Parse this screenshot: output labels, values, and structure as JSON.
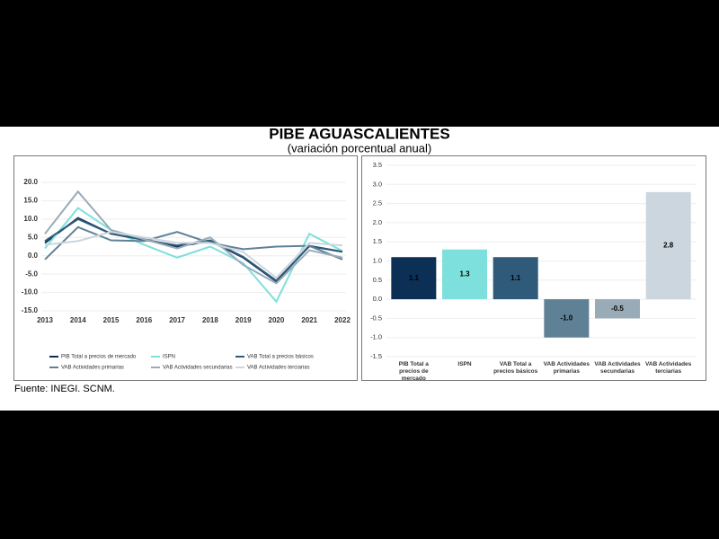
{
  "title": "PIBE AGUASCALIENTES",
  "subtitle": "(variación porcentual anual)",
  "source": "Fuente: INEGI. SCNM.",
  "chart_data": [
    {
      "type": "line",
      "categories": [
        "2013",
        "2014",
        "2015",
        "2016",
        "2017",
        "2018",
        "2019",
        "2020",
        "2021",
        "2022"
      ],
      "ylim": [
        -15,
        20
      ],
      "yticks": [
        {
          "value": 20,
          "label": "20.0"
        },
        {
          "value": 15,
          "label": "15.0"
        },
        {
          "value": 10,
          "label": "10.0"
        },
        {
          "value": 5,
          "label": "5.0"
        },
        {
          "value": 0,
          "label": "0.0"
        },
        {
          "value": -5,
          "label": "-5.0"
        },
        {
          "value": -10,
          "label": "-10.0"
        },
        {
          "value": -15,
          "label": "-15.0"
        }
      ],
      "grid": true,
      "series": [
        {
          "name": "PIB Total a precios de mercado",
          "color": "#0b2f55",
          "values": [
            3.5,
            10.3,
            6,
            4.5,
            2.5,
            4,
            -0.5,
            -7,
            2.7,
            1.1
          ]
        },
        {
          "name": "ISPN",
          "color": "#7ee0dc",
          "values": [
            2,
            13,
            7,
            3,
            -0.5,
            2.5,
            -2,
            -12.5,
            6,
            1.3
          ]
        },
        {
          "name": "VAB Total a precios básicos",
          "color": "#2f5a7a",
          "values": [
            4,
            10,
            6,
            4.3,
            2.8,
            4.2,
            -0.3,
            -6.8,
            2.6,
            1.1
          ]
        },
        {
          "name": "VAB Actividades primarias",
          "color": "#5f8196",
          "values": [
            -1,
            7.8,
            4.2,
            4,
            6.5,
            3.5,
            1.8,
            2.5,
            2.7,
            -1.0
          ]
        },
        {
          "name": "VAB Actividades secundarias",
          "color": "#9aabb8",
          "values": [
            6,
            17.5,
            7,
            4.5,
            2,
            5,
            -2.5,
            -7.5,
            1.5,
            -0.5
          ]
        },
        {
          "name": "VAB Actividades terciarias",
          "color": "#ccd6de",
          "values": [
            3,
            4,
            6.5,
            5,
            3.5,
            3.5,
            1,
            -6,
            3.5,
            2.8
          ]
        }
      ]
    },
    {
      "type": "bar",
      "categories": [
        "PIB Total a precios de mercado",
        "ISPN",
        "VAB Total a precios básicos",
        "VAB Actividades primarias",
        "VAB Actividades secundarias",
        "VAB Actividades terciarias"
      ],
      "values": [
        1.1,
        1.3,
        1.1,
        -1.0,
        -0.5,
        2.8
      ],
      "value_labels": [
        "1.1",
        "1.3",
        "1.1",
        "-1.0",
        "-0.5",
        "2.8"
      ],
      "colors": [
        "#0b2f55",
        "#7ee0dc",
        "#2f5a7a",
        "#5f8196",
        "#9aabb8",
        "#ccd6de"
      ],
      "ylim": [
        -1.5,
        3.5
      ],
      "yticks": [
        3.5,
        {
          "value": 3,
          "label": "3.0"
        },
        2.5,
        {
          "value": 2,
          "label": "2.0"
        },
        1.5,
        {
          "value": 1,
          "label": "1.0"
        },
        0.5,
        {
          "value": 0,
          "label": "0.0"
        },
        -0.5,
        {
          "value": -1,
          "label": "-1.0"
        },
        -1.5
      ],
      "grid": true
    }
  ]
}
